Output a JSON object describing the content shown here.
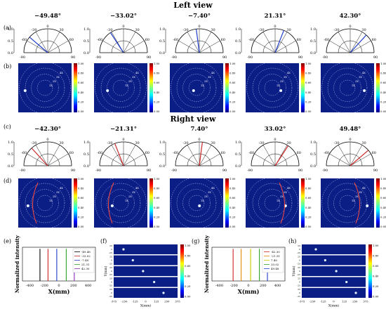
{
  "sections": {
    "left": "Left view",
    "right": "Right view"
  },
  "panel_letters": [
    "(a)",
    "(b)",
    "(c)",
    "(d)",
    "(e)",
    "(f)",
    "(g)",
    "(h)"
  ],
  "angles": {
    "left": [
      "−49.48°",
      "−33.02°",
      "−7.40°",
      "21.31°",
      "42.30°"
    ],
    "right": [
      "−42.30°",
      "−21.31°",
      "7.40°",
      "33.02°",
      "49.48°"
    ]
  },
  "polar": {
    "angle_ticks": [
      "-90",
      "-60",
      "-30",
      "0",
      "30",
      "60",
      "90"
    ],
    "radial_ticks": [
      "0.0",
      "0.5",
      "1.0"
    ]
  },
  "heatmap": {
    "ring_labels": [
      "1X",
      "2X",
      "3X",
      "4X"
    ],
    "colorbar_ticks": [
      "1.00",
      "0.80",
      "0.60",
      "0.40",
      "0.20",
      "0.00"
    ]
  },
  "colors": {
    "line": "#1f3cc9",
    "line_right": "#cc2a2a",
    "field": "#0b1e86"
  },
  "chart_data": [
    {
      "panel": "(e)",
      "type": "line",
      "xlabel": "X(mm)",
      "ylabel": "Normalized intensity",
      "x_ticks": [
        "-400",
        "-200",
        "0",
        "200",
        "400"
      ],
      "xlim": [
        -500,
        500
      ],
      "ylim": [
        0,
        1.05
      ],
      "series": [
        {
          "name": "-49.48",
          "peak_x": -260,
          "values": [
            1.0
          ],
          "color": "#000000"
        },
        {
          "name": "-33.02",
          "peak_x": -150,
          "values": [
            1.0
          ],
          "color": "#cc2222"
        },
        {
          "name": "-7.40",
          "peak_x": -30,
          "values": [
            1.0
          ],
          "color": "#1f3cc9"
        },
        {
          "name": "21.31",
          "peak_x": 100,
          "values": [
            1.0
          ],
          "color": "#2aa32a"
        },
        {
          "name": "42.30",
          "peak_x": 210,
          "values": [
            1.0
          ],
          "color": "#8a2ab5"
        }
      ]
    },
    {
      "panel": "(f)",
      "type": "heatmap",
      "xlabel": "X(mm)",
      "ylabel": "Y(mm)",
      "x_ticks": [
        "-375",
        "-250",
        "-125",
        "0",
        "125",
        "250",
        "375"
      ],
      "y_ticks": [
        "25",
        "0",
        "-25",
        "25",
        "0",
        "-25",
        "25",
        "0",
        "-25",
        "25",
        "0",
        "-25",
        "25",
        "0",
        "-25"
      ],
      "spot_x": [
        -260,
        -150,
        -30,
        100,
        210
      ],
      "colorbar_ticks": [
        "1.00",
        "0.80",
        "0.60",
        "0.40",
        "0.20",
        "0.00"
      ]
    },
    {
      "panel": "(g)",
      "type": "line",
      "xlabel": "X(mm)",
      "ylabel": "Normalized intensity",
      "x_ticks": [
        "-400",
        "-200",
        "0",
        "200",
        "400"
      ],
      "xlim": [
        -500,
        500
      ],
      "ylim": [
        0,
        1.05
      ],
      "series": [
        {
          "name": "-42.30",
          "peak_x": -210,
          "values": [
            1.0
          ],
          "color": "#cc2222"
        },
        {
          "name": "-21.31",
          "peak_x": -100,
          "values": [
            1.0
          ],
          "color": "#e08a00"
        },
        {
          "name": "7.40",
          "peak_x": 30,
          "values": [
            1.0
          ],
          "color": "#c8c800"
        },
        {
          "name": "33.02",
          "peak_x": 150,
          "values": [
            1.0
          ],
          "color": "#2aa32a"
        },
        {
          "name": "49.48",
          "peak_x": 260,
          "values": [
            1.0
          ],
          "color": "#1f3cc9"
        }
      ]
    },
    {
      "panel": "(h)",
      "type": "heatmap",
      "xlabel": "X(mm)",
      "ylabel": "Y(mm)",
      "x_ticks": [
        "-375",
        "-250",
        "-125",
        "0",
        "125",
        "250",
        "375"
      ],
      "y_ticks": [
        "25",
        "0",
        "-25",
        "25",
        "0",
        "-25",
        "25",
        "0",
        "-25",
        "25",
        "0",
        "-25",
        "25",
        "0",
        "-25"
      ],
      "spot_x": [
        -210,
        -100,
        30,
        150,
        260
      ],
      "colorbar_ticks": [
        "1.00",
        "0.80",
        "0.60",
        "0.40",
        "0.20",
        "0.00"
      ]
    }
  ]
}
